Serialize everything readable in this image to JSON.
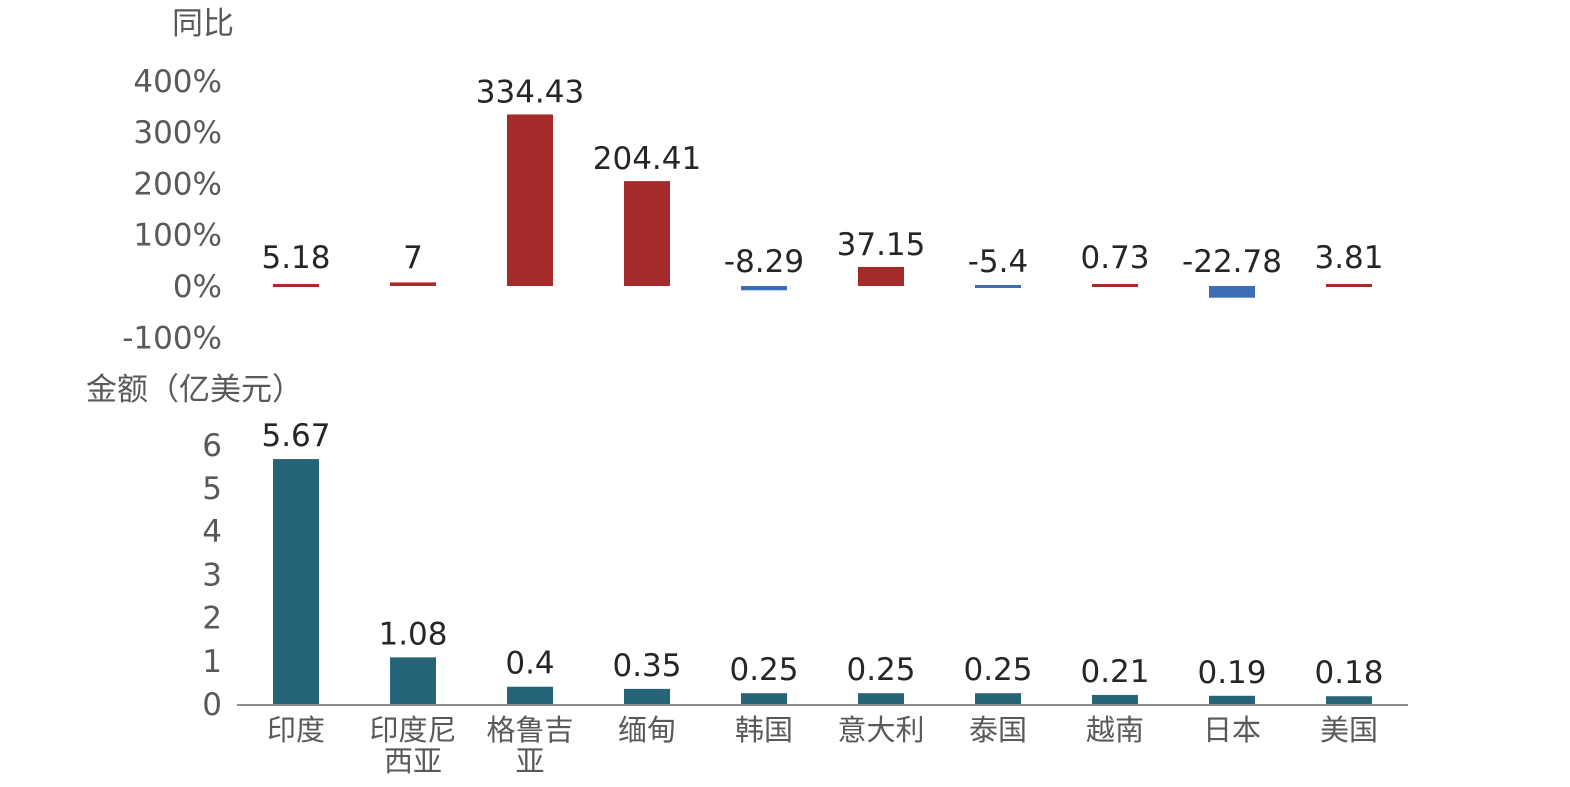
{
  "chart_data": [
    {
      "type": "bar",
      "ylabel": "同比",
      "yticks": [
        "400%",
        "300%",
        "200%",
        "100%",
        "0%",
        "-100%"
      ],
      "ylim": [
        -100,
        400
      ],
      "categories": [
        "印度",
        "印度尼西亚",
        "格鲁吉亚",
        "缅甸",
        "韩国",
        "意大利",
        "泰国",
        "越南",
        "日本",
        "美国"
      ],
      "values": [
        5.18,
        7,
        334.43,
        204.41,
        -8.29,
        37.15,
        -5.4,
        0.73,
        -22.78,
        3.81
      ],
      "data_labels": [
        "5.18",
        "7",
        "334.43",
        "204.41",
        "-8.29",
        "37.15",
        "-5.4",
        "0.73",
        "-22.78",
        "3.81"
      ],
      "colors": {
        "positive": "#a52a2a",
        "negative": "#3a6db5"
      }
    },
    {
      "type": "bar",
      "ylabel": "金额（亿美元）",
      "yticks": [
        "6",
        "5",
        "4",
        "3",
        "2",
        "1",
        "0"
      ],
      "ylim": [
        0,
        6
      ],
      "categories": [
        "印度",
        "印度尼西亚",
        "格鲁吉亚",
        "缅甸",
        "韩国",
        "意大利",
        "泰国",
        "越南",
        "日本",
        "美国"
      ],
      "category_lines": [
        [
          "印度"
        ],
        [
          "印度尼",
          "西亚"
        ],
        [
          "格鲁吉",
          "亚"
        ],
        [
          "缅甸"
        ],
        [
          "韩国"
        ],
        [
          "意大利"
        ],
        [
          "泰国"
        ],
        [
          "越南"
        ],
        [
          "日本"
        ],
        [
          "美国"
        ]
      ],
      "values": [
        5.67,
        1.08,
        0.4,
        0.35,
        0.25,
        0.25,
        0.25,
        0.21,
        0.19,
        0.18
      ],
      "data_labels": [
        "5.67",
        "1.08",
        "0.4",
        "0.35",
        "0.25",
        "0.25",
        "0.25",
        "0.21",
        "0.19",
        "0.18"
      ],
      "colors": {
        "bar": "#266577",
        "axis": "#8c8c8c"
      }
    }
  ]
}
